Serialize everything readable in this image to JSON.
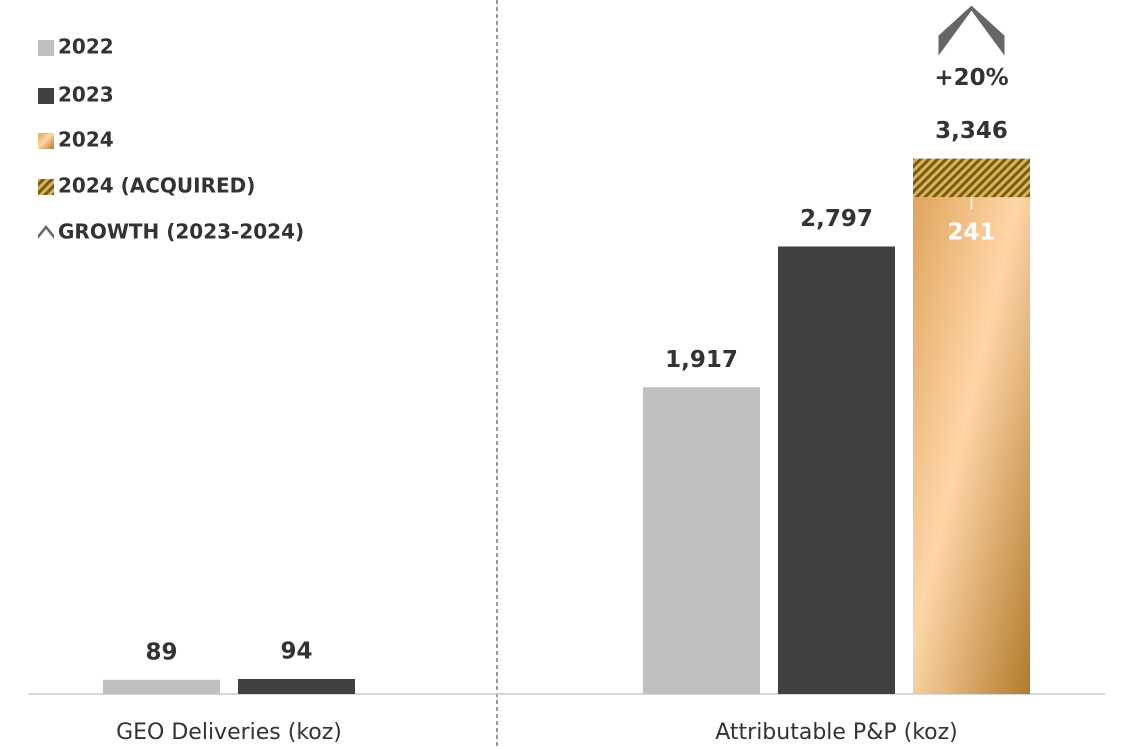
{
  "chart_data": {
    "type": "bar",
    "stacked": true,
    "categories": [
      "GEO Deliveries (koz)",
      "Attributable P&P (koz)"
    ],
    "series": [
      {
        "name": "2022",
        "color": "#bfbfbf",
        "values": [
          89,
          1917
        ],
        "value_labels": [
          "89",
          "1,917"
        ]
      },
      {
        "name": "2023",
        "color": "#404040",
        "values": [
          94,
          2797
        ],
        "value_labels": [
          "94",
          "2,797"
        ]
      },
      {
        "name": "2024",
        "color": "#b07a2a",
        "values": [
          null,
          3105
        ]
      },
      {
        "name": "2024 (ACQUIRED)",
        "color": "#7a5a10",
        "stack": "2024",
        "values": [
          null,
          241
        ],
        "value_labels": [
          null,
          "241"
        ]
      }
    ],
    "totals": {
      "values": [
        null,
        3346
      ],
      "value_labels": [
        null,
        "3,346"
      ]
    },
    "growth": {
      "name": "GROWTH (2023-2024)",
      "value": 20,
      "label": "+20%",
      "color": "#666666"
    },
    "ylim": [
      0,
      3500
    ],
    "legend": "top-left"
  }
}
